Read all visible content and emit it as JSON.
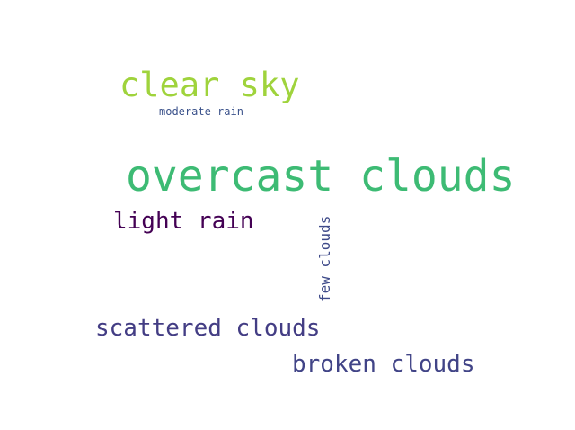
{
  "word_cloud": {
    "background": "#ffffff",
    "words": {
      "overcast": {
        "text": "overcast clouds",
        "color": "#3dbb74"
      },
      "clear": {
        "text": "clear sky",
        "color": "#9fd33c"
      },
      "moderate": {
        "text": "moderate rain",
        "color": "#3b528b"
      },
      "light": {
        "text": "light rain",
        "color": "#440154"
      },
      "few": {
        "text": "few clouds",
        "color": "#3e4a89"
      },
      "scattered": {
        "text": "scattered clouds",
        "color": "#433d84"
      },
      "broken": {
        "text": "broken clouds",
        "color": "#414487"
      }
    }
  }
}
